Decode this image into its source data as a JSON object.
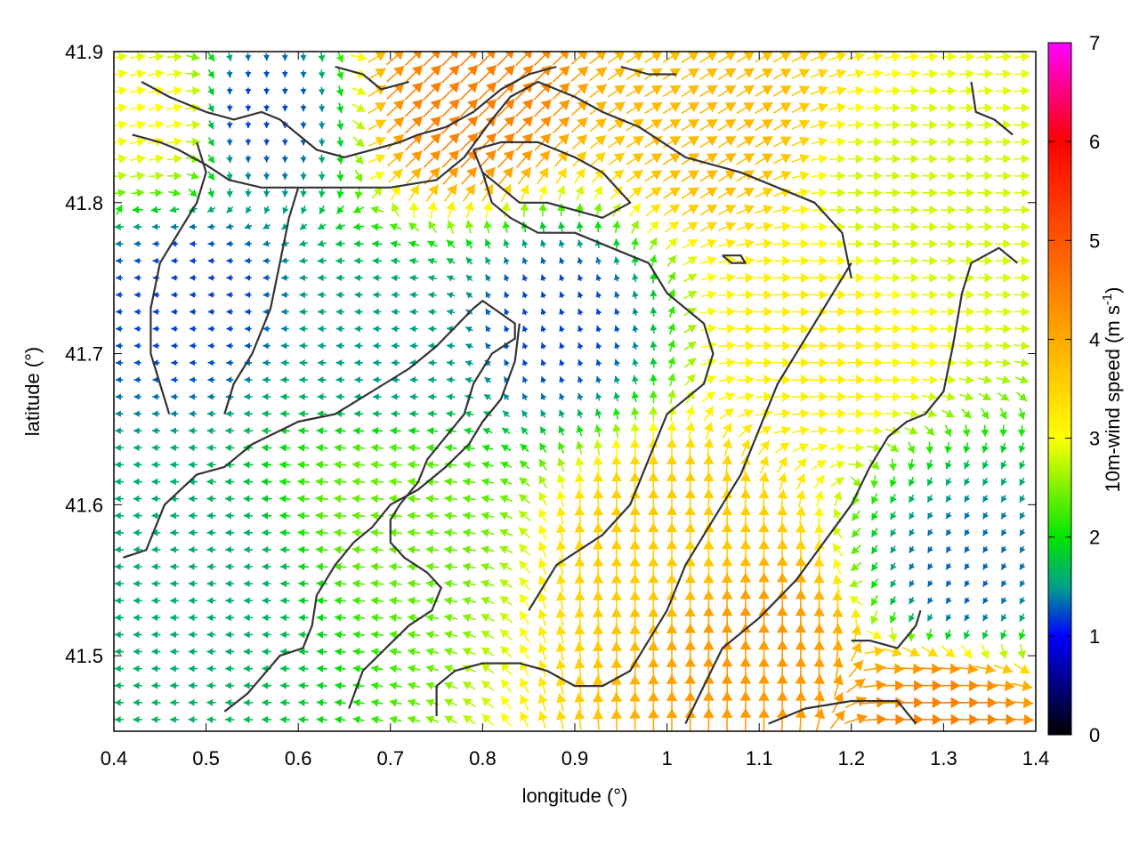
{
  "chart_data": {
    "type": "quiver",
    "xlabel": "longitude (°)",
    "ylabel": "latitude (°)",
    "xlim": [
      0.4,
      1.4
    ],
    "ylim": [
      41.45,
      41.9
    ],
    "x_ticks": [
      "0.4",
      "0.5",
      "0.6",
      "0.7",
      "0.8",
      "0.9",
      "1",
      "1.1",
      "1.2",
      "1.3",
      "1.4"
    ],
    "y_ticks": [
      "41.5",
      "41.6",
      "41.7",
      "41.8",
      "41.9"
    ],
    "colorbar": {
      "label_main": "10m-wind speed (m s",
      "label_sup": "-1",
      "label_end": ")",
      "range": [
        0,
        7
      ],
      "ticks": [
        "0",
        "1",
        "2",
        "3",
        "4",
        "5",
        "6",
        "7"
      ],
      "stops": [
        {
          "v": 0,
          "color": "#000000"
        },
        {
          "v": 1,
          "color": "#0000ff"
        },
        {
          "v": 1.5,
          "color": "#00a08a"
        },
        {
          "v": 2,
          "color": "#00e600"
        },
        {
          "v": 3,
          "color": "#ffff00"
        },
        {
          "v": 4,
          "color": "#ffaa00"
        },
        {
          "v": 5,
          "color": "#ff5500"
        },
        {
          "v": 6,
          "color": "#ff0000"
        },
        {
          "v": 7,
          "color": "#ff00ff"
        }
      ]
    },
    "wind_regions": [
      {
        "lon": 0.7,
        "lat": 41.6,
        "speed": 2.4,
        "u": -1.0,
        "v": 0.1
      },
      {
        "lon": 0.5,
        "lat": 41.55,
        "speed": 1.6,
        "u": -1.0,
        "v": 0.0
      },
      {
        "lon": 0.48,
        "lat": 41.74,
        "speed": 1.2,
        "u": -1.0,
        "v": 0.0
      },
      {
        "lon": 0.88,
        "lat": 41.72,
        "speed": 1.2,
        "u": -0.3,
        "v": 0.8
      },
      {
        "lon": 0.7,
        "lat": 41.7,
        "speed": 1.5,
        "u": -1.0,
        "v": 0.0
      },
      {
        "lon": 1.0,
        "lat": 41.58,
        "speed": 3.6,
        "u": 0.0,
        "v": 1.0
      },
      {
        "lon": 1.1,
        "lat": 41.5,
        "speed": 4.2,
        "u": 0.0,
        "v": 1.0
      },
      {
        "lon": 1.05,
        "lat": 41.85,
        "speed": 3.8,
        "u": 0.8,
        "v": 0.5
      },
      {
        "lon": 0.55,
        "lat": 41.86,
        "speed": 1.2,
        "u": 0.0,
        "v": -1.0
      },
      {
        "lon": 0.78,
        "lat": 41.87,
        "speed": 4.5,
        "u": 0.6,
        "v": 0.6
      },
      {
        "lon": 1.32,
        "lat": 41.55,
        "speed": 1.3,
        "u": -0.5,
        "v": -0.8
      },
      {
        "lon": 1.3,
        "lat": 41.46,
        "speed": 4.5,
        "u": 0.9,
        "v": 0.0
      },
      {
        "lon": 1.25,
        "lat": 41.8,
        "speed": 2.8,
        "u": 1.0,
        "v": 0.0
      },
      {
        "lon": 1.15,
        "lat": 41.72,
        "speed": 3.2,
        "u": 1.0,
        "v": 0.0
      },
      {
        "lon": 0.45,
        "lat": 41.86,
        "speed": 3.0,
        "u": 1.0,
        "v": 0.2
      }
    ],
    "contours": [
      [
        [
          0.41,
          41.565
        ],
        [
          0.435,
          41.57
        ],
        [
          0.455,
          41.6
        ],
        [
          0.49,
          41.62
        ],
        [
          0.52,
          41.625
        ],
        [
          0.55,
          41.64
        ],
        [
          0.6,
          41.655
        ],
        [
          0.64,
          41.66
        ],
        [
          0.68,
          41.675
        ],
        [
          0.72,
          41.69
        ],
        [
          0.75,
          41.705
        ],
        [
          0.79,
          41.73
        ],
        [
          0.8,
          41.735
        ],
        [
          0.835,
          41.72
        ],
        [
          0.835,
          41.71
        ],
        [
          0.81,
          41.7
        ],
        [
          0.79,
          41.68
        ],
        [
          0.78,
          41.66
        ],
        [
          0.76,
          41.645
        ],
        [
          0.74,
          41.63
        ],
        [
          0.73,
          41.615
        ],
        [
          0.71,
          41.6
        ],
        [
          0.7,
          41.59
        ],
        [
          0.7,
          41.575
        ],
        [
          0.715,
          41.565
        ],
        [
          0.74,
          41.555
        ],
        [
          0.755,
          41.545
        ],
        [
          0.745,
          41.53
        ],
        [
          0.72,
          41.52
        ],
        [
          0.695,
          41.505
        ],
        [
          0.67,
          41.49
        ],
        [
          0.655,
          41.465
        ]
      ],
      [
        [
          0.52,
          41.463
        ],
        [
          0.545,
          41.475
        ],
        [
          0.58,
          41.5
        ],
        [
          0.605,
          41.505
        ],
        [
          0.615,
          41.52
        ],
        [
          0.62,
          41.54
        ],
        [
          0.64,
          41.56
        ],
        [
          0.66,
          41.575
        ],
        [
          0.68,
          41.585
        ],
        [
          0.7,
          41.6
        ],
        [
          0.73,
          41.61
        ],
        [
          0.76,
          41.625
        ],
        [
          0.785,
          41.64
        ],
        [
          0.8,
          41.655
        ],
        [
          0.82,
          41.67
        ],
        [
          0.835,
          41.695
        ],
        [
          0.84,
          41.72
        ]
      ],
      [
        [
          0.75,
          41.46
        ],
        [
          0.75,
          41.48
        ],
        [
          0.77,
          41.49
        ],
        [
          0.8,
          41.495
        ],
        [
          0.84,
          41.495
        ],
        [
          0.87,
          41.49
        ],
        [
          0.9,
          41.48
        ],
        [
          0.93,
          41.48
        ],
        [
          0.96,
          41.49
        ],
        [
          0.98,
          41.51
        ],
        [
          1.0,
          41.53
        ],
        [
          1.02,
          41.56
        ],
        [
          1.05,
          41.59
        ],
        [
          1.08,
          41.62
        ],
        [
          1.1,
          41.65
        ],
        [
          1.12,
          41.68
        ],
        [
          1.14,
          41.7
        ],
        [
          1.16,
          41.72
        ],
        [
          1.2,
          41.76
        ]
      ],
      [
        [
          1.02,
          41.455
        ],
        [
          1.04,
          41.48
        ],
        [
          1.06,
          41.505
        ],
        [
          1.1,
          41.525
        ],
        [
          1.14,
          41.55
        ],
        [
          1.17,
          41.575
        ],
        [
          1.2,
          41.6
        ],
        [
          1.22,
          41.625
        ],
        [
          1.24,
          41.645
        ],
        [
          1.26,
          41.655
        ],
        [
          1.28,
          41.66
        ],
        [
          1.3,
          41.675
        ],
        [
          1.31,
          41.705
        ],
        [
          1.32,
          41.74
        ],
        [
          1.33,
          41.76
        ],
        [
          1.36,
          41.77
        ],
        [
          1.38,
          41.76
        ]
      ],
      [
        [
          1.11,
          41.455
        ],
        [
          1.15,
          41.465
        ],
        [
          1.2,
          41.47
        ],
        [
          1.25,
          41.47
        ],
        [
          1.27,
          41.455
        ]
      ],
      [
        [
          0.42,
          41.845
        ],
        [
          0.45,
          41.84
        ],
        [
          0.47,
          41.835
        ],
        [
          0.5,
          41.825
        ],
        [
          0.525,
          41.815
        ],
        [
          0.56,
          41.81
        ],
        [
          0.6,
          41.81
        ],
        [
          0.65,
          41.81
        ],
        [
          0.7,
          41.81
        ],
        [
          0.75,
          41.815
        ],
        [
          0.78,
          41.83
        ],
        [
          0.81,
          41.855
        ],
        [
          0.83,
          41.87
        ],
        [
          0.86,
          41.88
        ],
        [
          0.9,
          41.87
        ],
        [
          0.93,
          41.86
        ],
        [
          0.97,
          41.85
        ],
        [
          1.02,
          41.83
        ],
        [
          1.08,
          41.82
        ],
        [
          1.12,
          41.81
        ],
        [
          1.16,
          41.8
        ],
        [
          1.19,
          41.78
        ],
        [
          1.2,
          41.75
        ]
      ],
      [
        [
          0.43,
          41.88
        ],
        [
          0.46,
          41.87
        ],
        [
          0.5,
          41.86
        ],
        [
          0.53,
          41.855
        ],
        [
          0.56,
          41.86
        ],
        [
          0.58,
          41.855
        ],
        [
          0.6,
          41.845
        ],
        [
          0.62,
          41.835
        ],
        [
          0.65,
          41.83
        ],
        [
          0.68,
          41.835
        ],
        [
          0.71,
          41.84
        ],
        [
          0.73,
          41.845
        ],
        [
          0.76,
          41.85
        ],
        [
          0.79,
          41.86
        ],
        [
          0.82,
          41.875
        ],
        [
          0.85,
          41.885
        ],
        [
          0.88,
          41.89
        ]
      ],
      [
        [
          0.46,
          41.66
        ],
        [
          0.45,
          41.68
        ],
        [
          0.44,
          41.7
        ],
        [
          0.44,
          41.73
        ],
        [
          0.45,
          41.76
        ],
        [
          0.47,
          41.78
        ],
        [
          0.49,
          41.8
        ],
        [
          0.5,
          41.82
        ],
        [
          0.49,
          41.84
        ]
      ],
      [
        [
          0.52,
          41.66
        ],
        [
          0.53,
          41.68
        ],
        [
          0.55,
          41.7
        ],
        [
          0.57,
          41.73
        ],
        [
          0.58,
          41.76
        ],
        [
          0.59,
          41.79
        ],
        [
          0.6,
          41.81
        ]
      ],
      [
        [
          0.79,
          41.835
        ],
        [
          0.82,
          41.84
        ],
        [
          0.86,
          41.84
        ],
        [
          0.9,
          41.83
        ],
        [
          0.93,
          41.82
        ],
        [
          0.96,
          41.8
        ],
        [
          0.93,
          41.79
        ],
        [
          0.9,
          41.795
        ],
        [
          0.87,
          41.8
        ],
        [
          0.84,
          41.8
        ],
        [
          0.82,
          41.81
        ],
        [
          0.8,
          41.82
        ],
        [
          0.79,
          41.835
        ]
      ],
      [
        [
          0.8,
          41.82
        ],
        [
          0.81,
          41.8
        ],
        [
          0.83,
          41.79
        ],
        [
          0.86,
          41.78
        ],
        [
          0.9,
          41.78
        ],
        [
          0.94,
          41.77
        ],
        [
          0.98,
          41.76
        ],
        [
          1.0,
          41.74
        ],
        [
          1.04,
          41.72
        ],
        [
          1.05,
          41.7
        ],
        [
          1.04,
          41.68
        ],
        [
          1.0,
          41.66
        ],
        [
          0.98,
          41.63
        ],
        [
          0.96,
          41.6
        ],
        [
          0.93,
          41.58
        ],
        [
          0.88,
          41.56
        ],
        [
          0.85,
          41.53
        ]
      ],
      [
        [
          0.64,
          41.89
        ],
        [
          0.67,
          41.885
        ],
        [
          0.69,
          41.875
        ],
        [
          0.72,
          41.88
        ]
      ],
      [
        [
          0.95,
          41.89
        ],
        [
          0.98,
          41.885
        ],
        [
          1.01,
          41.885
        ]
      ],
      [
        [
          1.33,
          41.88
        ],
        [
          1.335,
          41.86
        ],
        [
          1.355,
          41.855
        ],
        [
          1.375,
          41.845
        ]
      ],
      [
        [
          1.06,
          41.765
        ],
        [
          1.08,
          41.765
        ],
        [
          1.085,
          41.76
        ],
        [
          1.07,
          41.76
        ],
        [
          1.06,
          41.765
        ]
      ],
      [
        [
          1.2,
          41.51
        ],
        [
          1.22,
          41.51
        ],
        [
          1.25,
          41.505
        ],
        [
          1.27,
          41.52
        ],
        [
          1.275,
          41.53
        ]
      ]
    ]
  }
}
